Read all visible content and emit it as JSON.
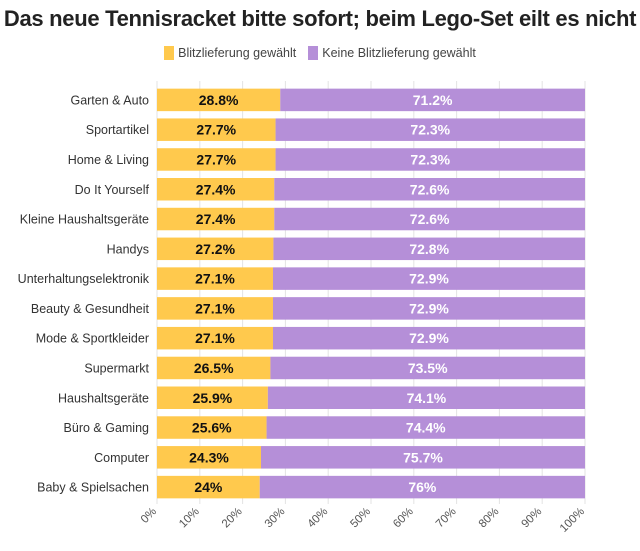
{
  "chart_data": {
    "type": "bar",
    "stacked": true,
    "orientation": "horizontal",
    "title": "Das neue Tennisracket bitte sofort; beim Lego-Set eilt es nicht",
    "categories": [
      "Garten & Auto",
      "Sportartikel",
      "Home & Living",
      "Do It Yourself",
      "Kleine Haushaltsgeräte",
      "Handys",
      "Unterhaltungselektronik",
      "Beauty & Gesundheit",
      "Mode & Sportkleider",
      "Supermarkt",
      "Haushaltsgeräte",
      "Büro & Gaming",
      "Computer",
      "Baby & Spielsachen"
    ],
    "series": [
      {
        "name": "Blitzlieferung gewählt",
        "color": "#FFC94D",
        "values": [
          28.8,
          27.7,
          27.7,
          27.4,
          27.4,
          27.2,
          27.1,
          27.1,
          27.1,
          26.5,
          25.9,
          25.6,
          24.3,
          24
        ],
        "labels": [
          "28.8%",
          "27.7%",
          "27.7%",
          "27.4%",
          "27.4%",
          "27.2%",
          "27.1%",
          "27.1%",
          "27.1%",
          "26.5%",
          "25.9%",
          "25.6%",
          "24.3%",
          "24%"
        ]
      },
      {
        "name": "Keine Blitzlieferung gewählt",
        "color": "#B58FD8",
        "values": [
          71.2,
          72.3,
          72.3,
          72.6,
          72.6,
          72.8,
          72.9,
          72.9,
          72.9,
          73.5,
          74.1,
          74.4,
          75.7,
          76
        ],
        "labels": [
          "71.2%",
          "72.3%",
          "72.3%",
          "72.6%",
          "72.6%",
          "72.8%",
          "72.9%",
          "72.9%",
          "72.9%",
          "73.5%",
          "74.1%",
          "74.4%",
          "75.7%",
          "76%"
        ]
      }
    ],
    "xlim": [
      0,
      100
    ],
    "xticks": [
      "0%",
      "10%",
      "20%",
      "30%",
      "40%",
      "50%",
      "60%",
      "70%",
      "80%",
      "90%",
      "100%"
    ],
    "grid": true,
    "legend": "top"
  }
}
